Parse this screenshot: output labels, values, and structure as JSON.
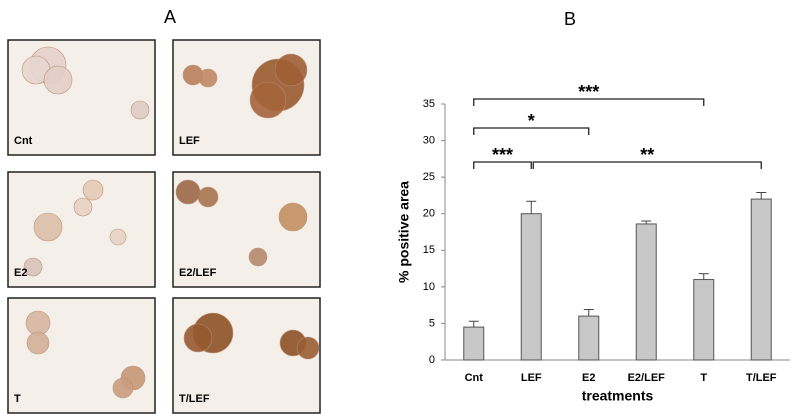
{
  "panel_a": {
    "label": "A",
    "images": [
      {
        "label": "Cnt"
      },
      {
        "label": "LEF"
      },
      {
        "label": "E2"
      },
      {
        "label": "E2/LEF"
      },
      {
        "label": "T"
      },
      {
        "label": "T/LEF"
      }
    ]
  },
  "chart_data": {
    "type": "bar",
    "title": "B",
    "categories": [
      "Cnt",
      "LEF",
      "E2",
      "E2/LEF",
      "T",
      "T/LEF"
    ],
    "values": [
      4.5,
      20,
      6,
      18.6,
      11,
      22
    ],
    "errors": [
      0.8,
      1.7,
      0.9,
      0.4,
      0.8,
      0.9
    ],
    "color": "#c8c8c8",
    "ylim": [
      0,
      35
    ],
    "yticks": [
      0,
      5,
      10,
      15,
      20,
      25,
      30,
      35
    ],
    "y_label": "% positive area",
    "x_label": "treatments",
    "annotations": [
      {
        "text": "***",
        "from": "Cnt",
        "to": "T"
      },
      {
        "text": "*",
        "from": "Cnt",
        "to": "E2"
      },
      {
        "text": "***",
        "from": "Cnt",
        "to": "LEF"
      },
      {
        "text": "**",
        "from": "LEF",
        "to": "T/LEF"
      }
    ]
  }
}
